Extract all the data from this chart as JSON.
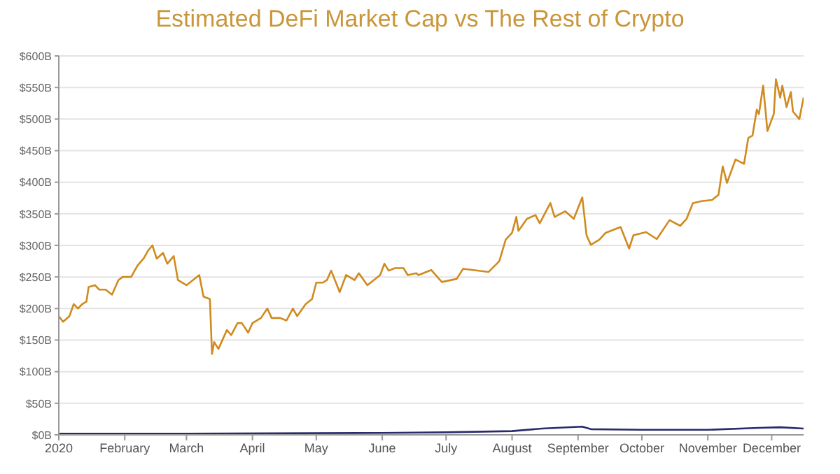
{
  "chart_data": {
    "type": "line",
    "title": "Estimated DeFi Market Cap vs The Rest of Crypto",
    "series": [
      {
        "color": "#d08a1e",
        "x": [
          "2020-01-01",
          "2020-01-03",
          "2020-01-06",
          "2020-01-08",
          "2020-01-10",
          "2020-01-12",
          "2020-01-14",
          "2020-01-15",
          "2020-01-18",
          "2020-01-20",
          "2020-01-23",
          "2020-01-26",
          "2020-01-29",
          "2020-01-31",
          "2020-02-04",
          "2020-02-07",
          "2020-02-10",
          "2020-02-12",
          "2020-02-14",
          "2020-02-16",
          "2020-02-19",
          "2020-02-21",
          "2020-02-24",
          "2020-02-26",
          "2020-03-01",
          "2020-03-04",
          "2020-03-07",
          "2020-03-09",
          "2020-03-12",
          "2020-03-13",
          "2020-03-14",
          "2020-03-16",
          "2020-03-18",
          "2020-03-20",
          "2020-03-22",
          "2020-03-25",
          "2020-03-27",
          "2020-03-30",
          "2020-04-01",
          "2020-04-05",
          "2020-04-08",
          "2020-04-10",
          "2020-04-14",
          "2020-04-17",
          "2020-04-20",
          "2020-04-22",
          "2020-04-26",
          "2020-04-29",
          "2020-05-01",
          "2020-05-04",
          "2020-05-06",
          "2020-05-08",
          "2020-05-12",
          "2020-05-15",
          "2020-05-19",
          "2020-05-21",
          "2020-05-25",
          "2020-05-28",
          "2020-05-31",
          "2020-06-02",
          "2020-06-04",
          "2020-06-07",
          "2020-06-11",
          "2020-06-13",
          "2020-06-17",
          "2020-06-18",
          "2020-06-24",
          "2020-06-29",
          "2020-07-06",
          "2020-07-09",
          "2020-07-21",
          "2020-07-26",
          "2020-07-29",
          "2020-08-01",
          "2020-08-03",
          "2020-08-04",
          "2020-08-08",
          "2020-08-12",
          "2020-08-14",
          "2020-08-19",
          "2020-08-21",
          "2020-08-26",
          "2020-08-30",
          "2020-09-03",
          "2020-09-05",
          "2020-09-07",
          "2020-09-11",
          "2020-09-14",
          "2020-09-21",
          "2020-09-25",
          "2020-09-27",
          "2020-10-03",
          "2020-10-08",
          "2020-10-14",
          "2020-10-19",
          "2020-10-22",
          "2020-10-25",
          "2020-10-29",
          "2020-11-03",
          "2020-11-06",
          "2020-11-08",
          "2020-11-10",
          "2020-11-14",
          "2020-11-18",
          "2020-11-20",
          "2020-11-22",
          "2020-11-24",
          "2020-11-25",
          "2020-11-27",
          "2020-11-29",
          "2020-12-02",
          "2020-12-03",
          "2020-12-05",
          "2020-12-06",
          "2020-12-08",
          "2020-12-10",
          "2020-12-11",
          "2020-12-14",
          "2020-12-16"
        ],
        "values": [
          188,
          179,
          188,
          207,
          200,
          207,
          211,
          234,
          237,
          230,
          230,
          222,
          245,
          250,
          250,
          268,
          280,
          292,
          300,
          279,
          288,
          271,
          283,
          245,
          237,
          245,
          253,
          219,
          215,
          128,
          147,
          136,
          151,
          166,
          158,
          177,
          177,
          162,
          177,
          185,
          200,
          185,
          185,
          181,
          200,
          188,
          207,
          215,
          241,
          241,
          245,
          260,
          226,
          253,
          245,
          256,
          237,
          245,
          253,
          271,
          260,
          264,
          264,
          253,
          256,
          253,
          261,
          242,
          247,
          263,
          258,
          275,
          309,
          320,
          345,
          323,
          342,
          348,
          335,
          367,
          345,
          354,
          342,
          376,
          316,
          301,
          309,
          320,
          329,
          295,
          316,
          321,
          310,
          340,
          331,
          342,
          367,
          370,
          372,
          380,
          425,
          399,
          436,
          429,
          470,
          474,
          515,
          508,
          553,
          481,
          508,
          563,
          534,
          553,
          519,
          543,
          512,
          500,
          534
        ]
      },
      {
        "color": "#2a2a6e",
        "x": [
          "2020-01-01",
          "2020-03-01",
          "2020-06-01",
          "2020-07-01",
          "2020-08-01",
          "2020-08-15",
          "2020-09-03",
          "2020-09-07",
          "2020-10-01",
          "2020-11-01",
          "2020-11-25",
          "2020-12-05",
          "2020-12-16"
        ],
        "values": [
          2,
          2,
          3,
          4,
          6,
          10,
          13,
          9,
          8,
          8,
          11,
          12,
          10
        ]
      }
    ],
    "xlim": [
      "2020-01-01",
      "2020-12-16"
    ],
    "xticks": [
      {
        "value": "2020-01-01",
        "label": "2020"
      },
      {
        "value": "2020-02-01",
        "label": "February"
      },
      {
        "value": "2020-03-01",
        "label": "March"
      },
      {
        "value": "2020-04-01",
        "label": "April"
      },
      {
        "value": "2020-05-01",
        "label": "May"
      },
      {
        "value": "2020-06-01",
        "label": "June"
      },
      {
        "value": "2020-07-01",
        "label": "July"
      },
      {
        "value": "2020-08-01",
        "label": "August"
      },
      {
        "value": "2020-09-01",
        "label": "September"
      },
      {
        "value": "2020-10-01",
        "label": "October"
      },
      {
        "value": "2020-11-01",
        "label": "November"
      },
      {
        "value": "2020-12-01",
        "label": "December"
      }
    ],
    "ylim": [
      0,
      600
    ],
    "yticks": [
      {
        "value": 0,
        "label": "$0B"
      },
      {
        "value": 50,
        "label": "$50B"
      },
      {
        "value": 100,
        "label": "$100B"
      },
      {
        "value": 150,
        "label": "$150B"
      },
      {
        "value": 200,
        "label": "$200B"
      },
      {
        "value": 250,
        "label": "$250B"
      },
      {
        "value": 300,
        "label": "$300B"
      },
      {
        "value": 350,
        "label": "$350B"
      },
      {
        "value": 400,
        "label": "$400B"
      },
      {
        "value": 450,
        "label": "$450B"
      },
      {
        "value": 500,
        "label": "$500B"
      },
      {
        "value": 550,
        "label": "$550B"
      },
      {
        "value": 600,
        "label": "$600B"
      }
    ],
    "grid": "y",
    "marker": "none",
    "line_style": "solid"
  }
}
